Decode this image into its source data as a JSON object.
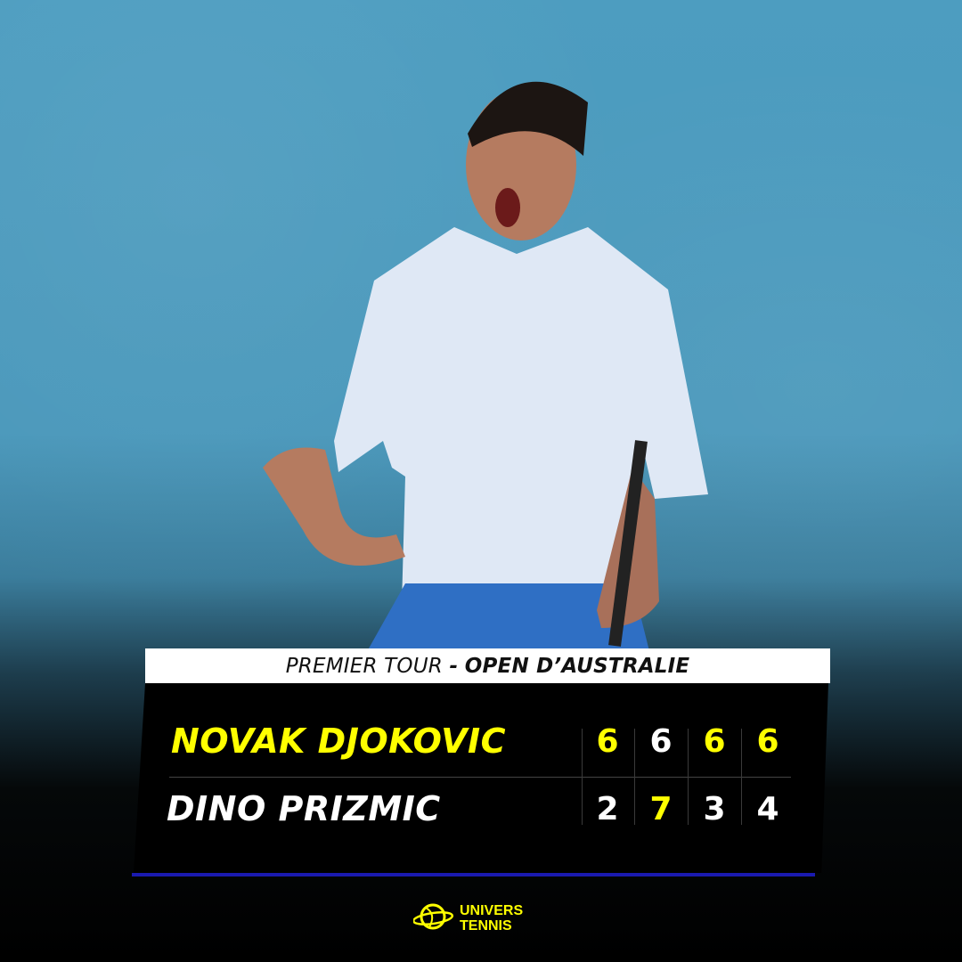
{
  "header": {
    "round": "PREMIER TOUR",
    "separator": "-",
    "tournament": "OPEN D’AUSTRALIE"
  },
  "players": [
    {
      "name": "NOVAK DJOKOVIC",
      "scores": [
        "6",
        "6",
        "6",
        "6"
      ],
      "winner": true
    },
    {
      "name": "DINO PRIZMIC",
      "scores": [
        "2",
        "7",
        "3",
        "4"
      ],
      "winner": false
    }
  ],
  "set_winner_highlight": [
    [
      true,
      false,
      true,
      true
    ],
    [
      false,
      true,
      false,
      false
    ]
  ],
  "logo": {
    "line1": "UNIVERS",
    "line2": "TENNIS"
  },
  "colors": {
    "highlight": "#ffff00",
    "text": "#ffffff",
    "accent_bar": "#1a1ab0",
    "court": "#4d9dc0"
  }
}
